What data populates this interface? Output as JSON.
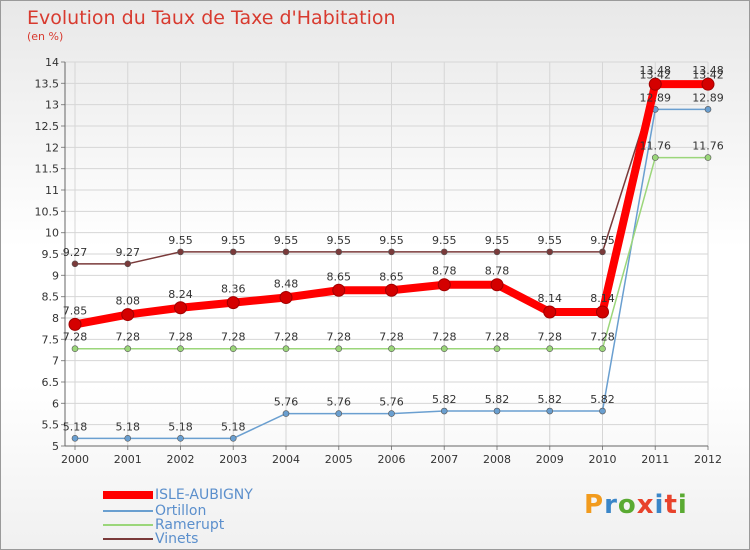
{
  "title": "Evolution du Taux de Taxe d'Habitation",
  "unit_label": "(en %)",
  "logo_text": "Proxiti",
  "logo_colors": [
    "#f29b1d",
    "#3a86c8",
    "#5aaa32",
    "#e8432c",
    "#3a86c8",
    "#e8432c",
    "#5aaa32"
  ],
  "chart_data": {
    "type": "line",
    "x": [
      "2000",
      "2001",
      "2002",
      "2003",
      "2004",
      "2005",
      "2006",
      "2007",
      "2008",
      "2009",
      "2010",
      "2011",
      "2012"
    ],
    "ylim": [
      5,
      14
    ],
    "yticks": [
      "5",
      "5.5",
      "6",
      "6.5",
      "7",
      "7.5",
      "8",
      "8.5",
      "9",
      "9.5",
      "10",
      "10.5",
      "11",
      "11.5",
      "12",
      "12.5",
      "13",
      "13.5",
      "14"
    ],
    "grid": true,
    "legend_position": "bottom-left",
    "series": [
      {
        "name": "ISLE-AUBIGNY",
        "color": "#ff0000",
        "values": [
          7.85,
          8.08,
          8.24,
          8.36,
          8.48,
          8.65,
          8.65,
          8.78,
          8.78,
          8.14,
          8.14,
          13.48,
          13.48
        ],
        "labels": [
          "7.85",
          "8.08",
          "8.24",
          "8.36",
          "8.48",
          "8.65",
          "8.65",
          "8.78",
          "8.78",
          "8.14",
          "8.14",
          "13.48",
          "13.48"
        ]
      },
      {
        "name": "Ortillon",
        "color": "#6a9fd0",
        "values": [
          5.18,
          5.18,
          5.18,
          5.18,
          5.76,
          5.76,
          5.76,
          5.82,
          5.82,
          5.82,
          5.82,
          12.89,
          12.89
        ],
        "labels": [
          "5.18",
          "5.18",
          "5.18",
          "5.18",
          "5.76",
          "5.76",
          "5.76",
          "5.82",
          "5.82",
          "5.82",
          "5.82",
          "12.89",
          "12.89"
        ]
      },
      {
        "name": "Ramerupt",
        "color": "#9bd67a",
        "values": [
          7.28,
          7.28,
          7.28,
          7.28,
          7.28,
          7.28,
          7.28,
          7.28,
          7.28,
          7.28,
          7.28,
          11.76,
          11.76
        ],
        "labels": [
          "7.28",
          "7.28",
          "7.28",
          "7.28",
          "7.28",
          "7.28",
          "7.28",
          "7.28",
          "7.28",
          "7.28",
          "7.28",
          "11.76",
          "11.76"
        ]
      },
      {
        "name": "Vinets",
        "color": "#7a3a3a",
        "values": [
          9.27,
          9.27,
          9.55,
          9.55,
          9.55,
          9.55,
          9.55,
          9.55,
          9.55,
          9.55,
          9.55,
          13.42,
          13.42
        ],
        "labels": [
          "9.27",
          "9.27",
          "9.55",
          "9.55",
          "9.55",
          "9.55",
          "9.55",
          "9.55",
          "9.55",
          "9.55",
          "9.55",
          "13.42",
          "13.42"
        ]
      }
    ]
  }
}
